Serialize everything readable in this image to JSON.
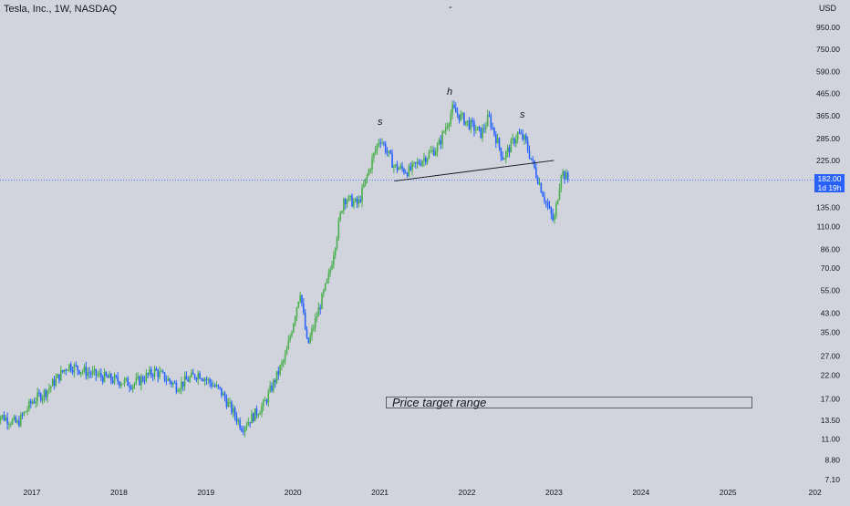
{
  "header": {
    "symbol_line": "Tesla, Inc., 1W, NASDAQ",
    "center_mark": "-",
    "currency": "USD"
  },
  "price_tag": {
    "price": "182.00",
    "countdown": "1d 19h"
  },
  "annotations": {
    "left_shoulder": "s",
    "head": "h",
    "right_shoulder": "s",
    "target_label": "Price target range"
  },
  "colors": {
    "background": "#d1d4dc",
    "up_candle": "#4caf50",
    "down_candle": "#2962ff",
    "price_line": "#2962ff",
    "neckline": "#131722"
  },
  "chart_data": {
    "type": "candlestick",
    "title": "Tesla, Inc., 1W, NASDAQ",
    "yaxis_scale": "log",
    "y_unit": "USD",
    "y_ticks": [
      "950.00",
      "750.00",
      "590.00",
      "465.00",
      "365.00",
      "285.00",
      "225.00",
      "135.00",
      "110.00",
      "86.00",
      "70.00",
      "55.00",
      "43.00",
      "35.00",
      "27.00",
      "22.00",
      "17.00",
      "13.50",
      "11.00",
      "8.80",
      "7.10"
    ],
    "x_ticks": [
      "2017",
      "2018",
      "2019",
      "2020",
      "2021",
      "2022",
      "2023",
      "2024",
      "2025",
      "202"
    ],
    "last_price": 182,
    "price_path": [
      [
        "2016-08",
        14.5
      ],
      [
        "2016-11",
        13.0
      ],
      [
        "2017-01",
        16.5
      ],
      [
        "2017-03",
        18.5
      ],
      [
        "2017-06",
        24.5
      ],
      [
        "2017-09",
        22.5
      ],
      [
        "2017-12",
        21.0
      ],
      [
        "2018-03",
        20.0
      ],
      [
        "2018-06",
        23.0
      ],
      [
        "2018-09",
        19.5
      ],
      [
        "2018-12",
        22.5
      ],
      [
        "2019-03",
        18.5
      ],
      [
        "2019-06",
        12.5
      ],
      [
        "2019-09",
        16.0
      ],
      [
        "2019-12",
        27.0
      ],
      [
        "2020-02",
        55.0
      ],
      [
        "2020-03",
        30.0
      ],
      [
        "2020-06",
        65.0
      ],
      [
        "2020-08",
        150.0
      ],
      [
        "2020-10",
        140.0
      ],
      [
        "2020-12",
        230.0
      ],
      [
        "2021-01",
        290.0
      ],
      [
        "2021-03",
        210.0
      ],
      [
        "2021-05",
        200.0
      ],
      [
        "2021-07",
        230.0
      ],
      [
        "2021-09",
        260.0
      ],
      [
        "2021-11",
        390.0
      ],
      [
        "2022-01",
        340.0
      ],
      [
        "2022-03",
        300.0
      ],
      [
        "2022-04",
        360.0
      ],
      [
        "2022-06",
        230.0
      ],
      [
        "2022-08",
        300.0
      ],
      [
        "2022-09",
        280.0
      ],
      [
        "2022-10",
        220.0
      ],
      [
        "2022-12",
        140.0
      ],
      [
        "2023-01",
        115.0
      ],
      [
        "2023-02",
        200.0
      ],
      [
        "2023-03",
        182.0
      ]
    ],
    "neckline": [
      [
        "2021-03",
        180
      ],
      [
        "2023-01",
        225
      ]
    ],
    "pattern": "head and shoulders",
    "target_range": [
      16.5,
      18.5
    ]
  }
}
